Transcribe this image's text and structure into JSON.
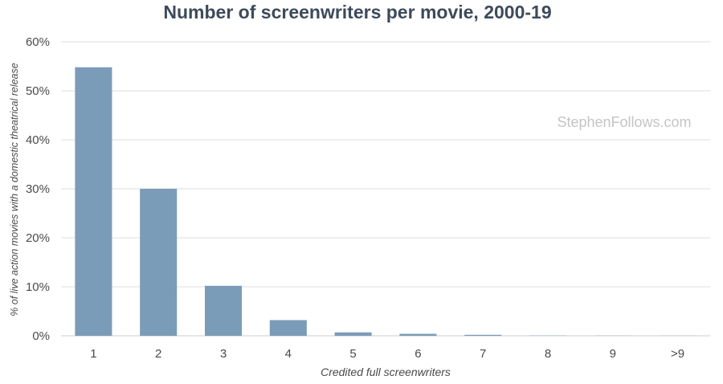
{
  "chart_data": {
    "type": "bar",
    "title": "Number of screenwriters per movie, 2000-19",
    "xlabel": "Credited full screenwriters",
    "ylabel": "% of live action movies with a domestic theatrical release",
    "categories": [
      "1",
      "2",
      "3",
      "4",
      "5",
      "6",
      "7",
      "8",
      "9",
      ">9"
    ],
    "values": [
      54.8,
      30.0,
      10.2,
      3.2,
      0.7,
      0.4,
      0.2,
      0.05,
      0.03,
      0.02
    ],
    "ylim": [
      0,
      60
    ],
    "yticks": [
      0,
      10,
      20,
      30,
      40,
      50,
      60
    ],
    "ytick_labels": [
      "0%",
      "10%",
      "20%",
      "30%",
      "40%",
      "50%",
      "60%"
    ],
    "grid": true,
    "legend": "none",
    "bar_color": "#7b9cb8",
    "watermark": "StephenFollows.com"
  }
}
